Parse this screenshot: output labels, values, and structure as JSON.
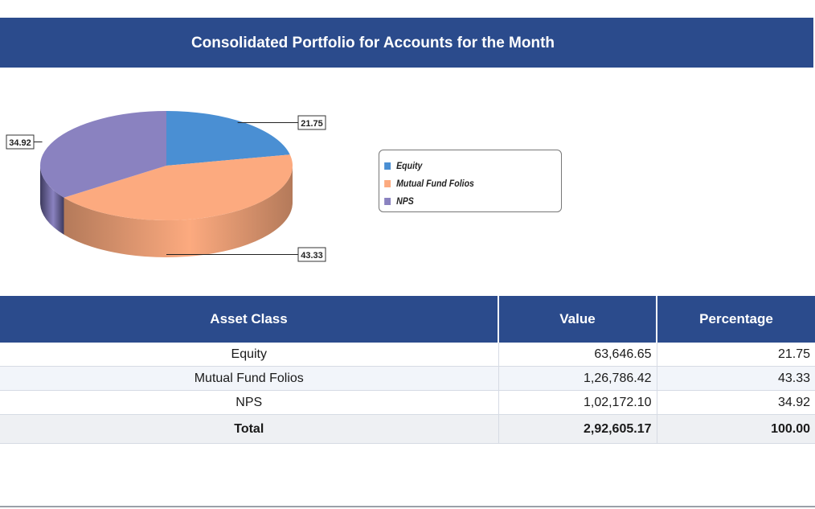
{
  "header": {
    "title": "Consolidated Portfolio for Accounts for the Month"
  },
  "chart_data": {
    "type": "pie",
    "title": "",
    "slices": [
      {
        "label": "Equity",
        "value": 21.75,
        "color": "#4a8fd3",
        "side": "#2e5f94"
      },
      {
        "label": "Mutual Fund Folios",
        "value": 43.33,
        "color": "#fcaa7f",
        "side": "#b47a5a"
      },
      {
        "label": "NPS",
        "value": 34.92,
        "color": "#8a82c0",
        "side": "#3d3a5e"
      }
    ],
    "data_labels": [
      "21.75",
      "43.33",
      "34.92"
    ],
    "legend": {
      "position": "right",
      "entries": [
        "Equity",
        "Mutual Fund Folios",
        "NPS"
      ]
    },
    "style": "3d"
  },
  "table": {
    "headers": [
      "Asset Class",
      "Value",
      "Percentage"
    ],
    "rows": [
      {
        "asset": "Equity",
        "value": "63,646.65",
        "pct": "21.75"
      },
      {
        "asset": "Mutual Fund Folios",
        "value": "1,26,786.42",
        "pct": "43.33"
      },
      {
        "asset": "NPS",
        "value": "1,02,172.10",
        "pct": "34.92"
      }
    ],
    "total": {
      "asset": "Total",
      "value": "2,92,605.17",
      "pct": "100.00"
    }
  }
}
